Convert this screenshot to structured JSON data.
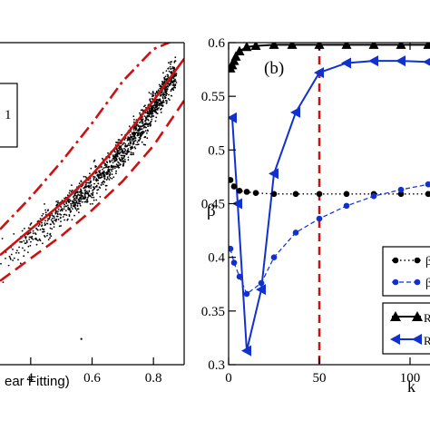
{
  "chart_data": [
    {
      "type": "scatter",
      "panel_label": "",
      "xlabel": "ear Fitting)",
      "ylabel": "",
      "xlim": [
        0.3,
        0.9
      ],
      "ylim": [
        0.0,
        1.0
      ],
      "x_ticks": [
        "4",
        "0.6",
        "0.8"
      ],
      "legend_box_text": "1",
      "series": [
        {
          "x": [
            0.3,
            0.36,
            0.42,
            0.48,
            0.54,
            0.6,
            0.66,
            0.72,
            0.78,
            0.84,
            0.87
          ],
          "y": [
            0.33,
            0.37,
            0.41,
            0.46,
            0.51,
            0.56,
            0.62,
            0.69,
            0.77,
            0.86,
            0.9
          ]
        },
        {
          "x": [
            0.3,
            0.4,
            0.5,
            0.6,
            0.7,
            0.8,
            0.9
          ],
          "y": [
            0.34,
            0.42,
            0.5,
            0.59,
            0.7,
            0.82,
            0.95
          ]
        },
        {
          "x": [
            0.3,
            0.4,
            0.5,
            0.6,
            0.7,
            0.8,
            0.9
          ],
          "y": [
            0.42,
            0.52,
            0.63,
            0.75,
            0.88,
            0.98,
            1.02
          ]
        },
        {
          "x": [
            0.3,
            0.4,
            0.5,
            0.6,
            0.7,
            0.8,
            0.9
          ],
          "y": [
            0.26,
            0.33,
            0.4,
            0.48,
            0.57,
            0.68,
            0.82
          ]
        }
      ],
      "outliers": [
        {
          "x": 0.565,
          "y": 0.08
        }
      ]
    },
    {
      "type": "line",
      "panel_label": "(b)",
      "xlabel": "k",
      "ylabel": "β",
      "xlim": [
        0,
        120
      ],
      "ylim": [
        0.3,
        0.6
      ],
      "x_ticks": [
        0,
        50,
        100
      ],
      "x_tick_labels": [
        "0",
        "50",
        "100"
      ],
      "y_ticks": [
        0.3,
        0.35,
        0.4,
        0.45,
        0.5,
        0.55,
        0.6
      ],
      "y_tick_labels": [
        "0.3",
        "0.35",
        "0.4",
        "0.45",
        "0.5",
        "0.55",
        "0.6"
      ],
      "vline": 50,
      "series": [
        {
          "name": "R",
          "color": "#000000",
          "marker": "triangle",
          "linestyle": "solid",
          "x": [
            1,
            2,
            3,
            4,
            6,
            10,
            15,
            25,
            35,
            50,
            65,
            80,
            95,
            110,
            120
          ],
          "y": [
            0.576,
            0.579,
            0.583,
            0.587,
            0.592,
            0.596,
            0.597,
            0.598,
            0.598,
            0.598,
            0.598,
            0.598,
            0.598,
            0.598,
            0.598
          ]
        },
        {
          "name": "R",
          "color": "#1030d0",
          "marker": "left-triangle",
          "linestyle": "solid",
          "x": [
            2,
            5,
            10,
            18,
            25,
            37,
            50,
            65,
            80,
            95,
            110,
            120
          ],
          "y": [
            0.53,
            0.45,
            0.313,
            0.37,
            0.478,
            0.535,
            0.572,
            0.581,
            0.583,
            0.583,
            0.582,
            0.581
          ]
        },
        {
          "name": "β",
          "color": "#000000",
          "marker": "circle",
          "linestyle": "dotted",
          "x": [
            1,
            3,
            6,
            10,
            15,
            25,
            37,
            50,
            65,
            80,
            95,
            110,
            120
          ],
          "y": [
            0.472,
            0.466,
            0.462,
            0.461,
            0.46,
            0.459,
            0.459,
            0.459,
            0.459,
            0.459,
            0.459,
            0.459,
            0.459
          ]
        },
        {
          "name": "β",
          "color": "#1030d0",
          "marker": "circle",
          "linestyle": "dashed",
          "x": [
            1,
            3,
            6,
            10,
            18,
            25,
            37,
            50,
            65,
            80,
            95,
            110,
            120
          ],
          "y": [
            0.408,
            0.395,
            0.382,
            0.366,
            0.376,
            0.4,
            0.423,
            0.436,
            0.448,
            0.457,
            0.463,
            0.468,
            0.47
          ]
        }
      ]
    }
  ]
}
